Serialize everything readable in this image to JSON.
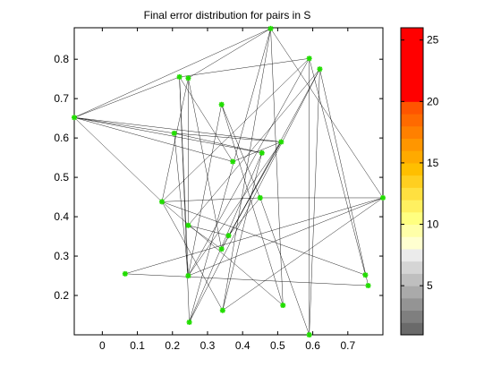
{
  "chart_data": {
    "type": "scatter",
    "title": "Final error distribution for pairs in S",
    "xlabel": "",
    "ylabel": "",
    "xlim": [
      -0.08,
      0.8
    ],
    "ylim": [
      0.1,
      0.88
    ],
    "xticks": [
      0,
      0.1,
      0.2,
      0.3,
      0.4,
      0.5,
      0.6,
      0.7
    ],
    "xtick_labels": [
      "0",
      "0.1",
      "0.2",
      "0.3",
      "0.4",
      "0.5",
      "0.6",
      "0.7"
    ],
    "yticks": [
      0.2,
      0.3,
      0.4,
      0.5,
      0.6,
      0.7,
      0.8
    ],
    "ytick_labels": [
      "0.2",
      "0.3",
      "0.4",
      "0.5",
      "0.6",
      "0.7",
      "0.8"
    ],
    "marker_color": "#22dd00",
    "line_color": "#000000",
    "points": [
      {
        "x": -0.08,
        "y": 0.652
      },
      {
        "x": 0.065,
        "y": 0.255
      },
      {
        "x": 0.17,
        "y": 0.438
      },
      {
        "x": 0.22,
        "y": 0.755
      },
      {
        "x": 0.205,
        "y": 0.612
      },
      {
        "x": 0.245,
        "y": 0.752
      },
      {
        "x": 0.245,
        "y": 0.378
      },
      {
        "x": 0.245,
        "y": 0.25
      },
      {
        "x": 0.248,
        "y": 0.132
      },
      {
        "x": 0.34,
        "y": 0.685
      },
      {
        "x": 0.34,
        "y": 0.318
      },
      {
        "x": 0.343,
        "y": 0.162
      },
      {
        "x": 0.36,
        "y": 0.352
      },
      {
        "x": 0.372,
        "y": 0.54
      },
      {
        "x": 0.45,
        "y": 0.448
      },
      {
        "x": 0.455,
        "y": 0.562
      },
      {
        "x": 0.48,
        "y": 0.878
      },
      {
        "x": 0.51,
        "y": 0.59
      },
      {
        "x": 0.515,
        "y": 0.175
      },
      {
        "x": 0.59,
        "y": 0.802
      },
      {
        "x": 0.62,
        "y": 0.775
      },
      {
        "x": 0.59,
        "y": 0.1
      },
      {
        "x": 0.8,
        "y": 0.448
      },
      {
        "x": 0.75,
        "y": 0.252
      },
      {
        "x": 0.758,
        "y": 0.225
      }
    ],
    "edges": [
      [
        0,
        3
      ],
      [
        0,
        4
      ],
      [
        0,
        13
      ],
      [
        0,
        15
      ],
      [
        0,
        17
      ],
      [
        0,
        16
      ],
      [
        0,
        2
      ],
      [
        1,
        22
      ],
      [
        1,
        24
      ],
      [
        2,
        5
      ],
      [
        2,
        14
      ],
      [
        2,
        19
      ],
      [
        2,
        23
      ],
      [
        2,
        11
      ],
      [
        2,
        18
      ],
      [
        3,
        8
      ],
      [
        3,
        7
      ],
      [
        3,
        19
      ],
      [
        3,
        13
      ],
      [
        4,
        17
      ],
      [
        4,
        15
      ],
      [
        4,
        7
      ],
      [
        5,
        16
      ],
      [
        5,
        6
      ],
      [
        5,
        10
      ],
      [
        6,
        12
      ],
      [
        6,
        10
      ],
      [
        7,
        19
      ],
      [
        7,
        9
      ],
      [
        7,
        17
      ],
      [
        8,
        16
      ],
      [
        8,
        20
      ],
      [
        8,
        15
      ],
      [
        9,
        18
      ],
      [
        9,
        14
      ],
      [
        10,
        20
      ],
      [
        10,
        17
      ],
      [
        11,
        16
      ],
      [
        11,
        22
      ],
      [
        11,
        15
      ],
      [
        12,
        17
      ],
      [
        12,
        14
      ],
      [
        13,
        17
      ],
      [
        14,
        21
      ],
      [
        14,
        22
      ],
      [
        16,
        22
      ],
      [
        16,
        18
      ],
      [
        19,
        23
      ],
      [
        19,
        21
      ],
      [
        20,
        24
      ],
      [
        20,
        21
      ],
      [
        20,
        6
      ],
      [
        22,
        7
      ]
    ],
    "colorbar": {
      "ticks": [
        5,
        10,
        15,
        20,
        25
      ],
      "tick_labels": [
        "5",
        "10",
        "15",
        "20",
        "25"
      ],
      "range": [
        1,
        26
      ],
      "bands": [
        {
          "from": 1,
          "to": 2,
          "color": "#6a6a6a"
        },
        {
          "from": 2,
          "to": 3,
          "color": "#7f7f7f"
        },
        {
          "from": 3,
          "to": 4,
          "color": "#949494"
        },
        {
          "from": 4,
          "to": 5,
          "color": "#aaaaaa"
        },
        {
          "from": 5,
          "to": 6,
          "color": "#bfbfbf"
        },
        {
          "from": 6,
          "to": 7,
          "color": "#d5d5d5"
        },
        {
          "from": 7,
          "to": 8,
          "color": "#ebebeb"
        },
        {
          "from": 8,
          "to": 9,
          "color": "#ffffd0"
        },
        {
          "from": 9,
          "to": 10,
          "color": "#ffffa8"
        },
        {
          "from": 10,
          "to": 11,
          "color": "#ffff80"
        },
        {
          "from": 11,
          "to": 12,
          "color": "#fff060"
        },
        {
          "from": 12,
          "to": 13,
          "color": "#ffe040"
        },
        {
          "from": 13,
          "to": 14,
          "color": "#ffcf20"
        },
        {
          "from": 14,
          "to": 15,
          "color": "#ffbf00"
        },
        {
          "from": 15,
          "to": 16,
          "color": "#ffaa00"
        },
        {
          "from": 16,
          "to": 17,
          "color": "#ff9600"
        },
        {
          "from": 17,
          "to": 18,
          "color": "#ff8000"
        },
        {
          "from": 18,
          "to": 19,
          "color": "#ff6a00"
        },
        {
          "from": 19,
          "to": 20,
          "color": "#ff5500"
        },
        {
          "from": 20,
          "to": 26,
          "color": "#ff0000"
        }
      ]
    }
  }
}
